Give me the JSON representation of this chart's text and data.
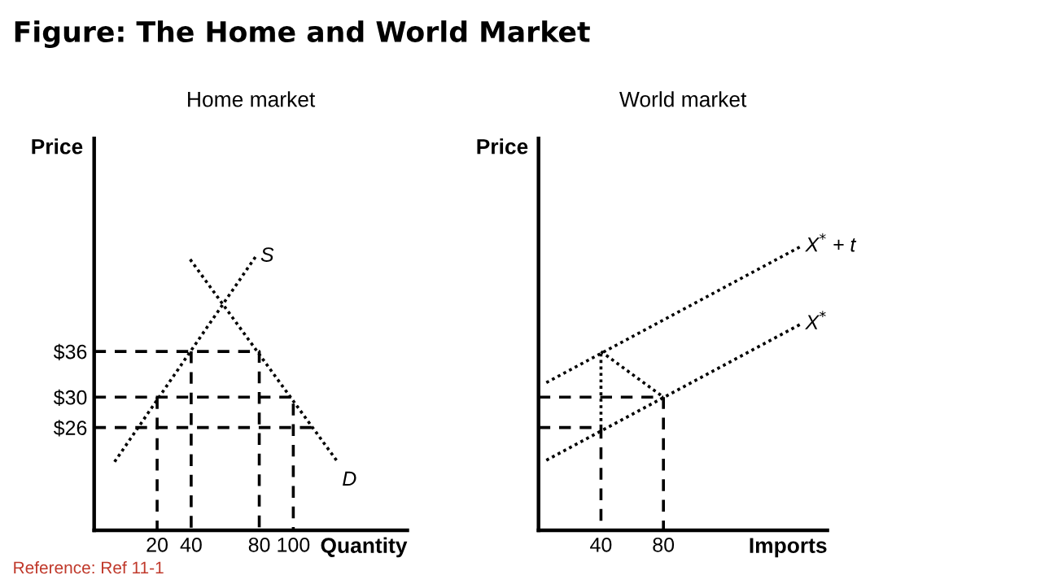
{
  "chart_data": [
    {
      "type": "line",
      "title": "Home market",
      "xlabel": "Quantity",
      "ylabel": "Price",
      "annotations": [
        "Figure: The Home and World Market",
        "Reference: Ref 11-1"
      ],
      "xlim": [
        -17,
        167
      ],
      "ylim": [
        12.5,
        64
      ],
      "xticks": [
        20,
        40,
        80,
        100
      ],
      "yticks": [
        {
          "value": 26,
          "label": "$26"
        },
        {
          "value": 30,
          "label": "$30"
        },
        {
          "value": 36,
          "label": "$36"
        }
      ],
      "grid": false,
      "legend": false,
      "marker": "none",
      "series": [
        {
          "name": "S",
          "color": "#000000",
          "line_style": "dotted",
          "x": [
            -5,
            78
          ],
          "values": [
            21.5,
            48.5
          ]
        },
        {
          "name": "D",
          "color": "#000000",
          "line_style": "dotted",
          "x": [
            39.4,
            126
          ],
          "values": [
            48.1,
            21.5
          ]
        },
        {
          "color": "#000000",
          "line_style": "dashed",
          "x": [
            -17,
            80,
            80
          ],
          "values": [
            36,
            36,
            12.5
          ]
        },
        {
          "color": "#000000",
          "line_style": "dashed",
          "x": [
            40,
            40
          ],
          "values": [
            36,
            12.5
          ]
        },
        {
          "color": "#000000",
          "line_style": "dashed",
          "x": [
            -17,
            100,
            100
          ],
          "values": [
            30,
            30,
            12.5
          ]
        },
        {
          "color": "#000000",
          "line_style": "dashed",
          "x": [
            20,
            20
          ],
          "values": [
            30,
            12.5
          ]
        },
        {
          "color": "#000000",
          "line_style": "dashed",
          "x": [
            -17,
            111.5
          ],
          "values": [
            26,
            26
          ]
        }
      ]
    },
    {
      "type": "line",
      "title": "World market",
      "xlabel": "Imports",
      "ylabel": "Price",
      "xlim": [
        0,
        185
      ],
      "ylim": [
        12.5,
        64
      ],
      "xticks": [
        40,
        80
      ],
      "tick_labels": "x",
      "grid": false,
      "legend": false,
      "marker": "none",
      "series": [
        {
          "name": "X$^{*}$ + t",
          "color": "#000000",
          "line_style": "dotted",
          "x": [
            5,
            168
          ],
          "values": [
            31.9,
            49.8
          ]
        },
        {
          "name": "X$^{*}$",
          "color": "#000000",
          "line_style": "dotted",
          "x": [
            5,
            168
          ],
          "values": [
            21.7,
            39.6
          ]
        },
        {
          "color": "#000000",
          "line_style": "dotted",
          "x": [
            40,
            40
          ],
          "values": [
            26,
            36
          ]
        },
        {
          "color": "#000000",
          "line_style": "dotted",
          "x": [
            40,
            80
          ],
          "values": [
            36,
            30
          ]
        },
        {
          "color": "#000000",
          "line_style": "dashed",
          "x": [
            0,
            80
          ],
          "values": [
            30,
            30
          ]
        },
        {
          "color": "#000000",
          "line_style": "dashed",
          "x": [
            80,
            80
          ],
          "values": [
            30,
            12.5
          ]
        },
        {
          "color": "#000000",
          "line_style": "dashed",
          "x": [
            0,
            40,
            40
          ],
          "values": [
            26,
            26,
            12.5
          ]
        }
      ]
    }
  ]
}
